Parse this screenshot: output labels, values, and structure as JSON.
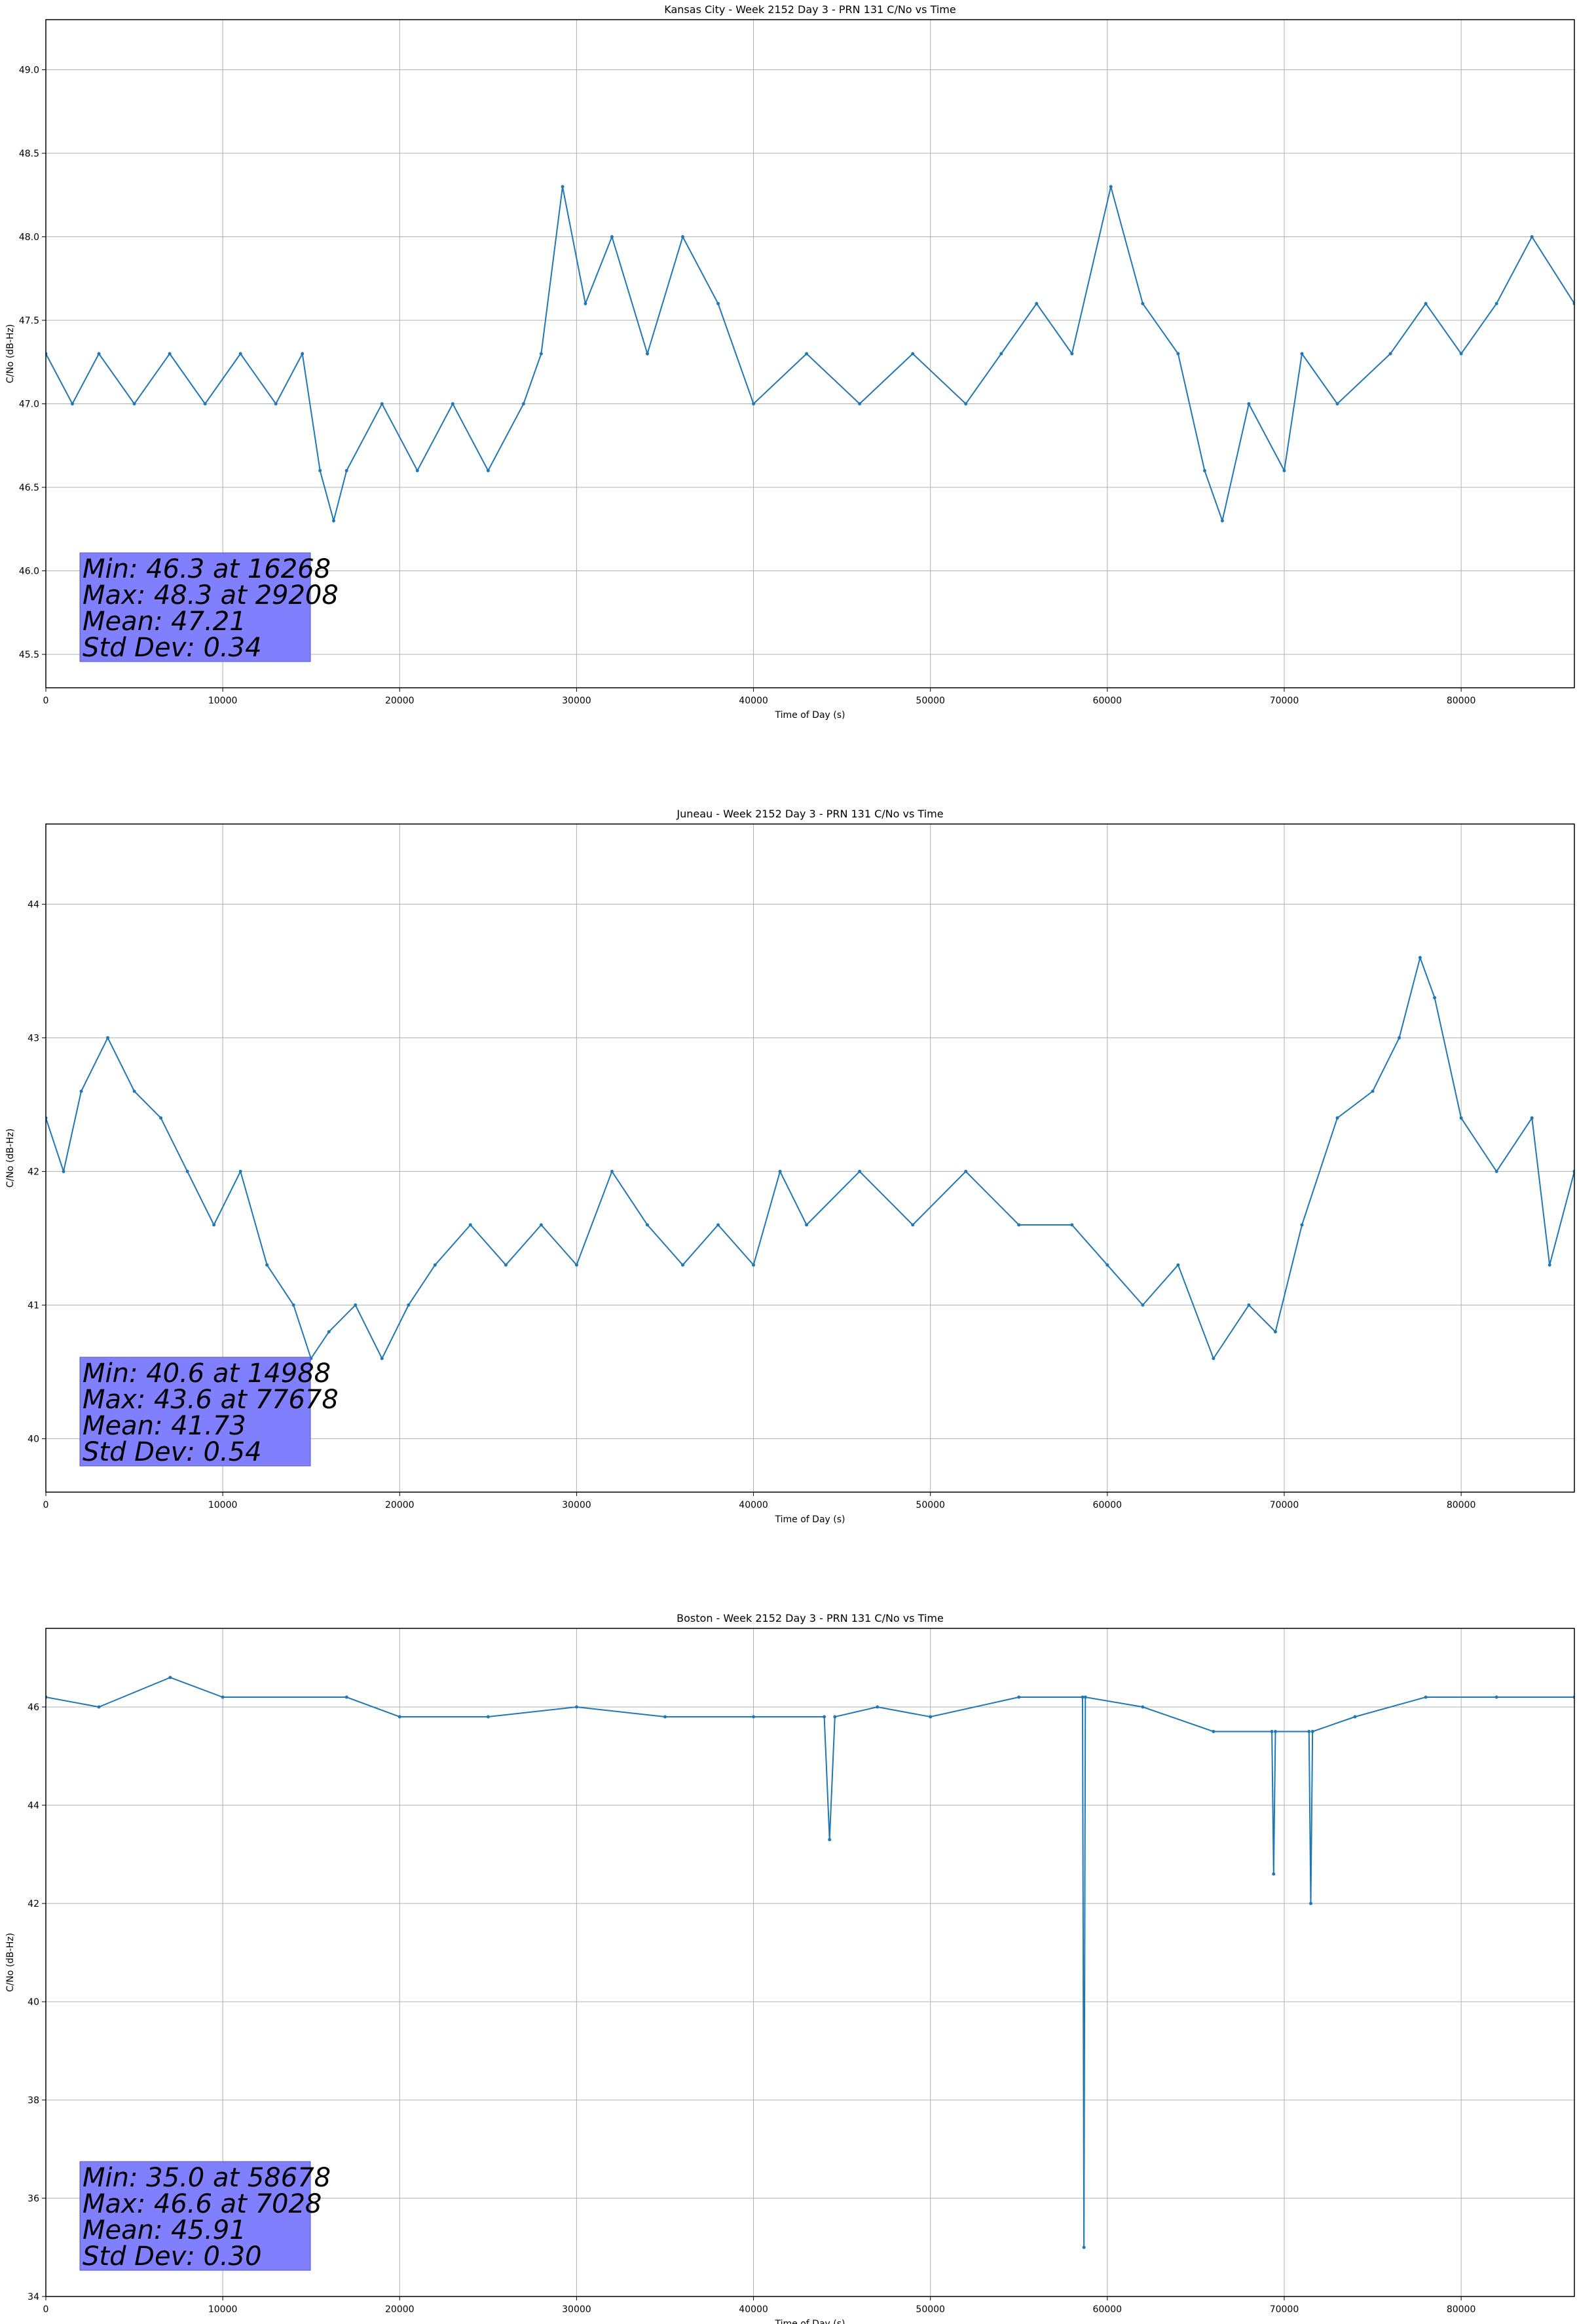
{
  "colors": {
    "series": "#1f77b4",
    "grid": "#b0b0b0",
    "stats_box_fill": "#8080ff",
    "stats_box_edge": "#5a5ab4",
    "axes": "#000000"
  },
  "chart_data": [
    {
      "type": "line",
      "title": "Kansas City - Week 2152 Day 3 - PRN 131 C/No vs Time",
      "xlabel": "Time of Day (s)",
      "ylabel": "C/No (dB-Hz)",
      "xlim": [
        0,
        86400
      ],
      "ylim": [
        45.3,
        49.3
      ],
      "xticks": [
        0,
        10000,
        20000,
        30000,
        40000,
        50000,
        60000,
        70000,
        80000
      ],
      "xtick_labels": [
        "0",
        "10000",
        "20000",
        "30000",
        "40000",
        "50000",
        "60000",
        "70000",
        "80000"
      ],
      "yticks": [
        45.5,
        46.0,
        46.5,
        47.0,
        47.5,
        48.0,
        48.5,
        49.0
      ],
      "ytick_labels": [
        "45.5",
        "46.0",
        "46.5",
        "47.0",
        "47.5",
        "48.0",
        "48.5",
        "49.0"
      ],
      "grid": true,
      "series": [
        {
          "x": [
            0,
            1500,
            3000,
            5000,
            7000,
            9000,
            11000,
            13000,
            14500,
            15500,
            16268,
            17000,
            19000,
            21000,
            23000,
            25000,
            27000,
            28000,
            29208,
            30500,
            32000,
            34000,
            36000,
            38000,
            40000,
            43000,
            46000,
            49000,
            52000,
            54000,
            56000,
            58000,
            60200,
            62000,
            64000,
            65500,
            66500,
            68000,
            70000,
            71000,
            73000,
            76000,
            78000,
            80000,
            82000,
            84000,
            86400
          ],
          "y": [
            47.3,
            47.0,
            47.3,
            47.0,
            47.3,
            47.0,
            47.3,
            47.0,
            47.3,
            46.6,
            46.3,
            46.6,
            47.0,
            46.6,
            47.0,
            46.6,
            47.0,
            47.3,
            48.3,
            47.6,
            48.0,
            47.3,
            48.0,
            47.6,
            47.0,
            47.3,
            47.0,
            47.3,
            47.0,
            47.3,
            47.6,
            47.3,
            48.3,
            47.6,
            47.3,
            46.6,
            46.3,
            47.0,
            46.6,
            47.3,
            47.0,
            47.3,
            47.6,
            47.3,
            47.6,
            48.0,
            47.6
          ]
        }
      ],
      "annotation": {
        "lines": [
          "Min: 46.3 at 16268",
          "Max: 48.3 at 29208",
          "Mean: 47.21",
          "Std Dev: 0.34"
        ],
        "position": "bottom-left"
      }
    },
    {
      "type": "line",
      "title": "Juneau - Week 2152 Day 3 - PRN 131 C/No vs Time",
      "xlabel": "Time of Day (s)",
      "ylabel": "C/No (dB-Hz)",
      "xlim": [
        0,
        86400
      ],
      "ylim": [
        39.6,
        44.6
      ],
      "xticks": [
        0,
        10000,
        20000,
        30000,
        40000,
        50000,
        60000,
        70000,
        80000
      ],
      "xtick_labels": [
        "0",
        "10000",
        "20000",
        "30000",
        "40000",
        "50000",
        "60000",
        "70000",
        "80000"
      ],
      "yticks": [
        40,
        41,
        42,
        43,
        44
      ],
      "ytick_labels": [
        "40",
        "41",
        "42",
        "43",
        "44"
      ],
      "grid": true,
      "series": [
        {
          "x": [
            0,
            1000,
            2000,
            3500,
            5000,
            6500,
            8000,
            9500,
            11000,
            12500,
            14000,
            14988,
            16000,
            17500,
            19000,
            20500,
            22000,
            24000,
            26000,
            28000,
            30000,
            32000,
            34000,
            36000,
            38000,
            40000,
            41500,
            43000,
            46000,
            49000,
            52000,
            55000,
            58000,
            60000,
            62000,
            64000,
            66000,
            68000,
            69500,
            71000,
            73000,
            75000,
            76500,
            77678,
            78500,
            80000,
            82000,
            84000,
            85000,
            86400
          ],
          "y": [
            42.4,
            42.0,
            42.6,
            43.0,
            42.6,
            42.4,
            42.0,
            41.6,
            42.0,
            41.3,
            41.0,
            40.6,
            40.8,
            41.0,
            40.6,
            41.0,
            41.3,
            41.6,
            41.3,
            41.6,
            41.3,
            42.0,
            41.6,
            41.3,
            41.6,
            41.3,
            42.0,
            41.6,
            42.0,
            41.6,
            42.0,
            41.6,
            41.6,
            41.3,
            41.0,
            41.3,
            40.6,
            41.0,
            40.8,
            41.6,
            42.4,
            42.6,
            43.0,
            43.6,
            43.3,
            42.4,
            42.0,
            42.4,
            41.3,
            42.0
          ]
        }
      ],
      "annotation": {
        "lines": [
          "Min: 40.6 at 14988",
          "Max: 43.6 at 77678",
          "Mean: 41.73",
          "Std Dev: 0.54"
        ],
        "position": "bottom-left"
      }
    },
    {
      "type": "line",
      "title": "Boston - Week 2152 Day 3 - PRN 131 C/No vs Time",
      "xlabel": "Time of Day (s)",
      "ylabel": "C/No (dB-Hz)",
      "xlim": [
        0,
        86400
      ],
      "ylim": [
        34.0,
        47.6
      ],
      "xticks": [
        0,
        10000,
        20000,
        30000,
        40000,
        50000,
        60000,
        70000,
        80000
      ],
      "xtick_labels": [
        "0",
        "10000",
        "20000",
        "30000",
        "40000",
        "50000",
        "60000",
        "70000",
        "80000"
      ],
      "yticks": [
        34,
        36,
        38,
        40,
        42,
        44,
        46
      ],
      "ytick_labels": [
        "34",
        "36",
        "38",
        "40",
        "42",
        "44",
        "46"
      ],
      "grid": true,
      "series": [
        {
          "x": [
            0,
            3000,
            7028,
            10000,
            17000,
            20000,
            25000,
            30000,
            35000,
            40000,
            44000,
            44300,
            44600,
            47000,
            50000,
            55000,
            58600,
            58678,
            58760,
            62000,
            66000,
            69300,
            69400,
            69500,
            71400,
            71500,
            71600,
            74000,
            78000,
            82000,
            86400
          ],
          "y": [
            46.2,
            46.0,
            46.6,
            46.2,
            46.2,
            45.8,
            45.8,
            46.0,
            45.8,
            45.8,
            45.8,
            43.3,
            45.8,
            46.0,
            45.8,
            46.2,
            46.2,
            35.0,
            46.2,
            46.0,
            45.5,
            45.5,
            42.6,
            45.5,
            45.5,
            42.0,
            45.5,
            45.8,
            46.2,
            46.2,
            46.2
          ]
        }
      ],
      "annotation": {
        "lines": [
          "Min: 35.0 at 58678",
          "Max: 46.6 at 7028",
          "Mean: 45.91",
          "Std Dev: 0.30"
        ],
        "position": "bottom-left"
      }
    }
  ]
}
